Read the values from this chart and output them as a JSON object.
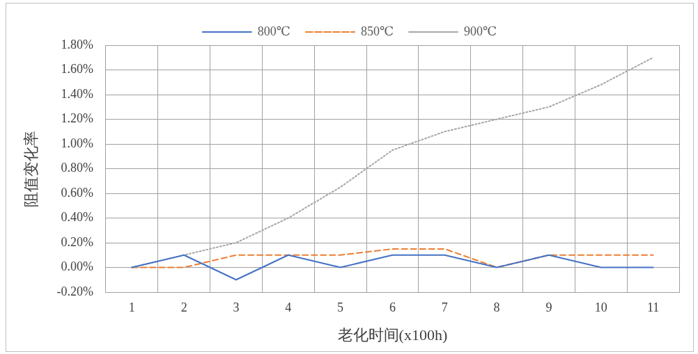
{
  "chart_data": {
    "type": "line",
    "xlabel": "老化时间(x100h)",
    "ylabel": "阻值变化率",
    "categories": [
      "1",
      "2",
      "3",
      "4",
      "5",
      "6",
      "7",
      "8",
      "9",
      "10",
      "11"
    ],
    "series": [
      {
        "name": "800℃",
        "color": "#4472c4",
        "line_style": "solid",
        "values": [
          0,
          0.1,
          -0.1,
          0.1,
          0,
          0.1,
          0.1,
          0,
          0.1,
          0,
          0
        ]
      },
      {
        "name": "850℃",
        "color": "#ed7d31",
        "line_style": "dashed",
        "values": [
          0,
          0,
          0.1,
          0.1,
          0.1,
          0.15,
          0.15,
          0,
          0.1,
          0.1,
          0.1
        ]
      },
      {
        "name": "900℃",
        "color": "#a5a5a5",
        "line_style": "dotted",
        "values": [
          0,
          0.1,
          0.2,
          0.4,
          0.65,
          0.95,
          1.1,
          1.2,
          1.3,
          1.48,
          1.7
        ]
      }
    ],
    "ylim": [
      -0.2,
      1.8
    ],
    "yticks": [
      {
        "value": -0.2,
        "label": "-0.20%"
      },
      {
        "value": 0,
        "label": "0.00%"
      },
      {
        "value": 0.2,
        "label": "0.20%"
      },
      {
        "value": 0.4,
        "label": "0.40%"
      },
      {
        "value": 0.6,
        "label": "0.60%"
      },
      {
        "value": 0.8,
        "label": "0.80%"
      },
      {
        "value": 1,
        "label": "1.00%"
      },
      {
        "value": 1.2,
        "label": "1.20%"
      },
      {
        "value": 1.4,
        "label": "1.40%"
      },
      {
        "value": 1.6,
        "label": "1.60%"
      },
      {
        "value": 1.8,
        "label": "1.80%"
      }
    ],
    "grid": true,
    "legend": "top",
    "marker": "none"
  }
}
